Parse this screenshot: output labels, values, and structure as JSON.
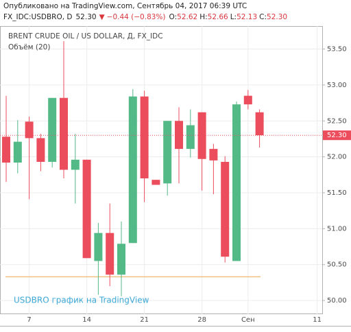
{
  "header": {
    "published": "Опубликовано на TradingView.com, Сентябрь 04, 2017 06:39 UTC",
    "symbol": "FX_IDC:USDBRO, D",
    "price": "52.30",
    "arrow": "▼",
    "change": "−0.44 (−0.83%)",
    "ohlc": [
      {
        "key": "O:",
        "text": "52.62"
      },
      {
        "key": "H:",
        "text": "52.66"
      },
      {
        "key": "L:",
        "text": "52.13"
      },
      {
        "key": "C:",
        "text": "52.30"
      }
    ]
  },
  "chart_data": {
    "type": "candlestick",
    "title": "BRENT CRUDE OIL / US DOLLAR, Д, FX_IDC",
    "subtitle": "Объём (20)",
    "watermark": "USDBRO график на TradingView",
    "categories": [
      null,
      null,
      "7",
      null,
      null,
      null,
      null,
      "14",
      null,
      null,
      null,
      null,
      "21",
      null,
      null,
      null,
      null,
      "28",
      null,
      null,
      null,
      "Сен",
      null,
      null,
      null,
      null,
      null,
      "11"
    ],
    "open": [
      52.28,
      51.92,
      52.49,
      52.26,
      51.93,
      52.82,
      51.82,
      51.96,
      50.55,
      50.94,
      50.36,
      50.8,
      52.84,
      51.68,
      51.63,
      52.5,
      52.11,
      52.62,
      52.11,
      51.93,
      50.55,
      52.85,
      52.62,
      null,
      null,
      null,
      null,
      null
    ],
    "high": [
      52.85,
      52.51,
      52.56,
      52.32,
      52.82,
      53.61,
      52.32,
      51.96,
      51.08,
      51.35,
      51.1,
      52.94,
      52.92,
      51.68,
      52.5,
      52.69,
      52.66,
      52.62,
      52.18,
      52.01,
      52.77,
      52.93,
      52.66,
      null,
      null,
      null,
      null,
      null
    ],
    "low": [
      51.65,
      51.77,
      51.41,
      51.8,
      51.85,
      51.7,
      51.35,
      50.59,
      50.08,
      50.2,
      50.06,
      50.8,
      51.37,
      51.61,
      51.46,
      51.63,
      51.99,
      51.53,
      51.48,
      50.53,
      50.55,
      52.66,
      52.13,
      null,
      null,
      null,
      null,
      null
    ],
    "close": [
      51.92,
      52.21,
      52.26,
      51.93,
      52.82,
      51.82,
      51.96,
      50.59,
      50.94,
      50.36,
      50.79,
      52.84,
      51.7,
      51.61,
      52.5,
      52.11,
      52.44,
      51.97,
      51.95,
      50.61,
      52.73,
      52.73,
      52.3,
      null,
      null,
      null,
      null,
      null
    ],
    "up_color": "#53b987",
    "down_color": "#eb4d5c",
    "ylim": [
      49.81,
      53.82
    ],
    "yticks": [
      {
        "value": 50,
        "label": "50.00"
      },
      {
        "value": 50.5,
        "label": "50.50"
      },
      {
        "value": 51,
        "label": "51.00"
      },
      {
        "value": 51.5,
        "label": "51.50"
      },
      {
        "value": 52,
        "label": "52.00"
      },
      {
        "value": 52.5,
        "label": "52.50"
      },
      {
        "value": 53,
        "label": "53.00"
      },
      {
        "value": 53.5,
        "label": "53.50"
      }
    ],
    "grid": true,
    "last_price": {
      "value": 52.3,
      "label": "52.30"
    },
    "horizontal_line": {
      "value": 50.33,
      "color": "#f0c080"
    }
  }
}
